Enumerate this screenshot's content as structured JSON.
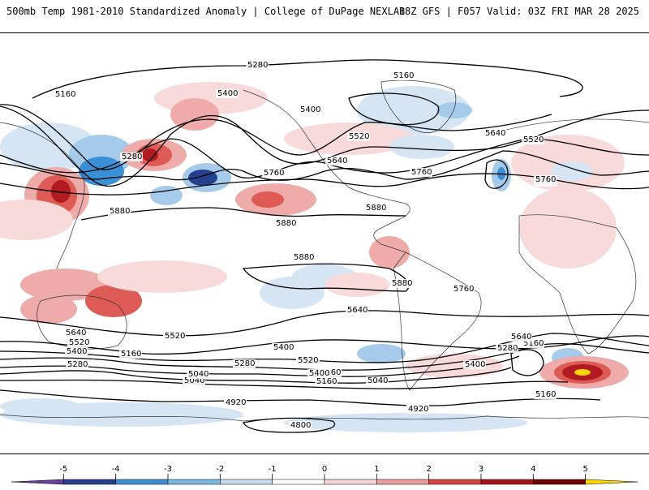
{
  "header": {
    "title": "500mb Temp 1981-2010 Standardized Anomaly | College of DuPage NEXLAB",
    "run_info": "18Z GFS | F057 Valid: 03Z FRI MAR 28 2025"
  },
  "contour_labels": [
    "5160",
    "5160",
    "5280",
    "5400",
    "5400",
    "5280",
    "5520",
    "5640",
    "5760",
    "5880",
    "5880",
    "5880",
    "5880",
    "5880",
    "5760",
    "5640",
    "5520",
    "5400",
    "5280",
    "5160",
    "5040",
    "4920",
    "4920",
    "4800",
    "5160",
    "5280",
    "5400",
    "5520",
    "5640",
    "5760",
    "5520",
    "5640",
    "5760",
    "5400",
    "5280",
    "5160",
    "5040",
    "5160",
    "4920",
    "5040",
    "5160",
    "5280",
    "5400",
    "5520",
    "5640",
    "5760"
  ],
  "colorbar": {
    "tick_labels": [
      "-5",
      "-4",
      "-3",
      "-2",
      "-1",
      "0",
      "1",
      "2",
      "3",
      "4",
      "5"
    ],
    "colors": [
      "#6a3d9a",
      "#24408e",
      "#3b8fd4",
      "#7ab8e6",
      "#c6dcf0",
      "#ffffff",
      "#f6d4d4",
      "#ec9d9d",
      "#d9433f",
      "#a6141a",
      "#6e0000",
      "#ffd500"
    ]
  },
  "palette": {
    "neg_strong": "#24408e",
    "neg_mid": "#3b8fd4",
    "neg_light": "#a6cbea",
    "neg_faint": "#d5e5f4",
    "pos_faint": "#f8dada",
    "pos_light": "#efaaaa",
    "pos_mid": "#de5a55",
    "pos_strong": "#b11a1f",
    "extreme": "#ffd500"
  }
}
